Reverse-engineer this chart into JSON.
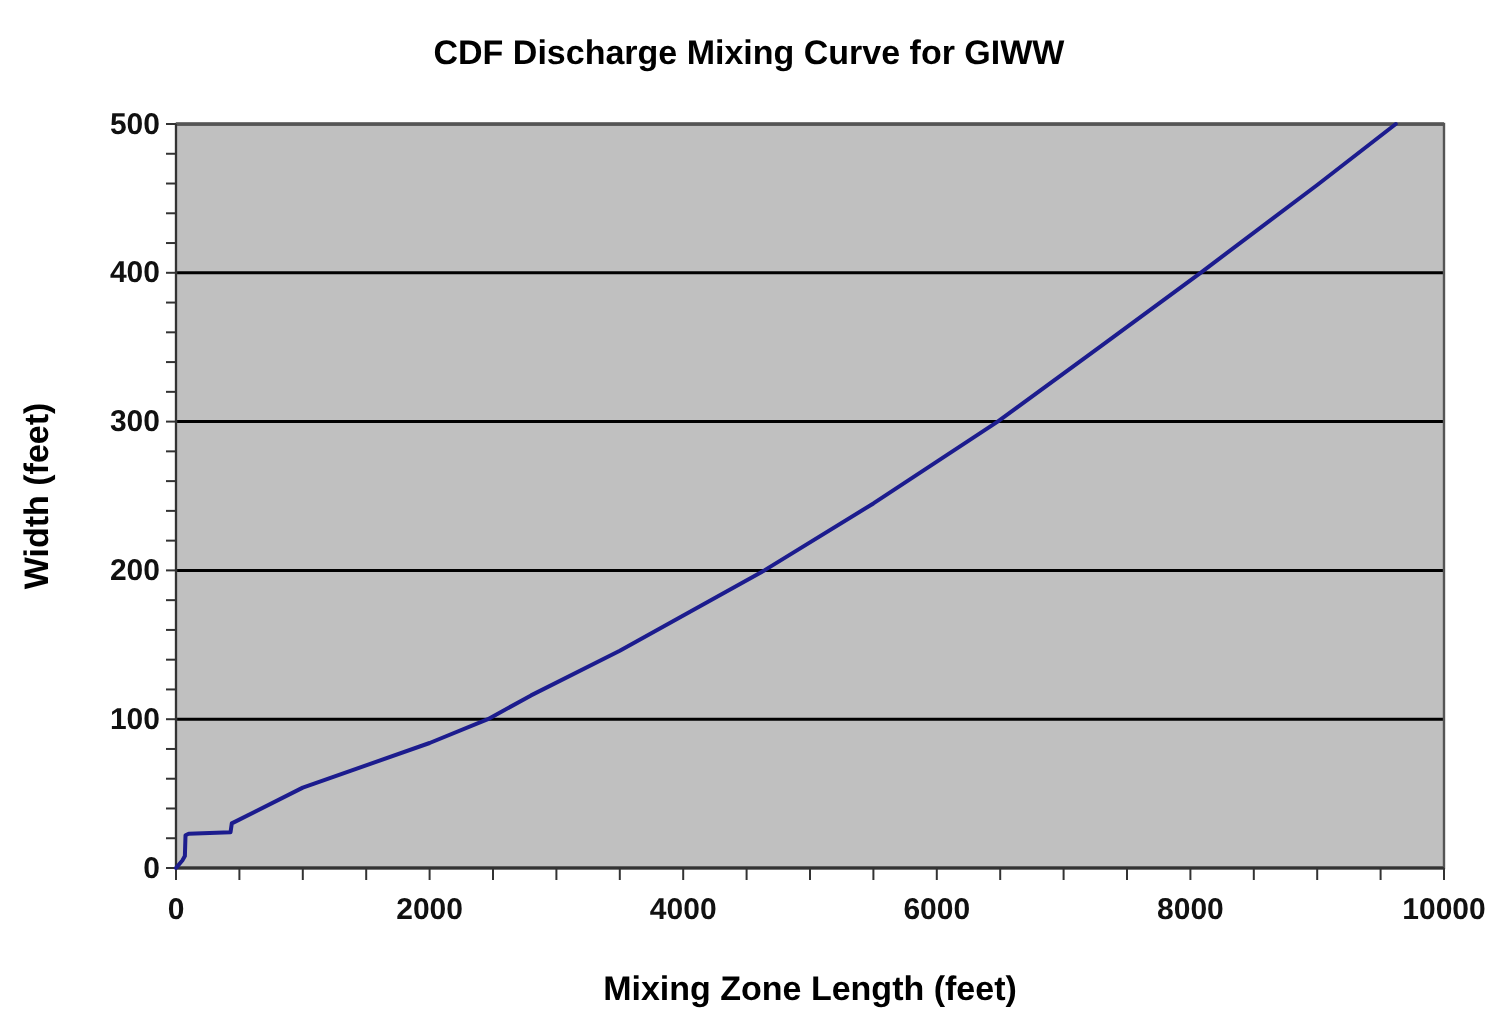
{
  "chart_data": {
    "type": "line",
    "title": "CDF Discharge Mixing Curve for GIWW",
    "xlabel": "Mixing Zone Length  (feet)",
    "ylabel": "Width  (feet)",
    "x": [
      0,
      50,
      70,
      75,
      100,
      430,
      440,
      1000,
      2000,
      2460,
      2800,
      3500,
      4640,
      5500,
      6480,
      7300,
      8080,
      9000,
      9620
    ],
    "series": [
      {
        "color": "#1c1c8e",
        "values": [
          0,
          5,
          8,
          22,
          23,
          24,
          30,
          54,
          84,
          100,
          116,
          146,
          200,
          245,
          300,
          351,
          400,
          459,
          500
        ]
      }
    ],
    "xlim": [
      0,
      10000
    ],
    "ylim": [
      0,
      500
    ],
    "xticks": [
      0,
      {
        "value": 500,
        "label": null
      },
      {
        "value": 1000,
        "label": null
      },
      {
        "value": 1500,
        "label": null
      },
      2000,
      {
        "value": 2500,
        "label": null
      },
      {
        "value": 3000,
        "label": null
      },
      {
        "value": 3500,
        "label": null
      },
      4000,
      {
        "value": 4500,
        "label": null
      },
      {
        "value": 5000,
        "label": null
      },
      {
        "value": 5500,
        "label": null
      },
      6000,
      {
        "value": 6500,
        "label": null
      },
      {
        "value": 7000,
        "label": null
      },
      {
        "value": 7500,
        "label": null
      },
      8000,
      {
        "value": 8500,
        "label": null
      },
      {
        "value": 9000,
        "label": null
      },
      {
        "value": 9500,
        "label": null
      },
      10000
    ],
    "yticks": [
      0,
      {
        "value": 20,
        "label": null
      },
      {
        "value": 40,
        "label": null
      },
      {
        "value": 60,
        "label": null
      },
      {
        "value": 80,
        "label": null
      },
      100,
      {
        "value": 120,
        "label": null
      },
      {
        "value": 140,
        "label": null
      },
      {
        "value": 160,
        "label": null
      },
      {
        "value": 180,
        "label": null
      },
      200,
      {
        "value": 220,
        "label": null
      },
      {
        "value": 240,
        "label": null
      },
      {
        "value": 260,
        "label": null
      },
      {
        "value": 280,
        "label": null
      },
      300,
      {
        "value": 320,
        "label": null
      },
      {
        "value": 340,
        "label": null
      },
      {
        "value": 360,
        "label": null
      },
      {
        "value": 380,
        "label": null
      },
      400,
      {
        "value": 420,
        "label": null
      },
      {
        "value": 440,
        "label": null
      },
      {
        "value": 460,
        "label": null
      },
      {
        "value": 480,
        "label": null
      },
      500
    ],
    "grid": "y",
    "marker": "none",
    "line_style": "solid"
  }
}
